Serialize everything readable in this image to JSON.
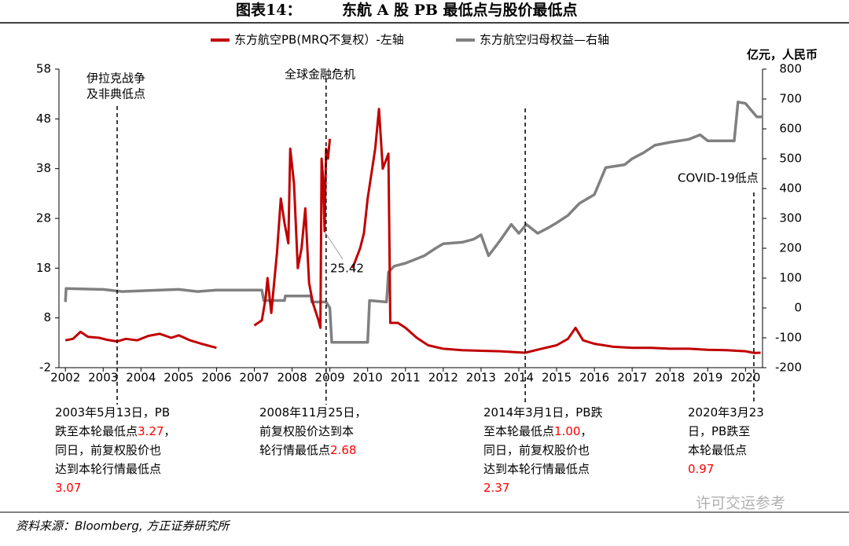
{
  "chart_data": {
    "type": "line",
    "title": "图表14：",
    "subtitle": "东航 A 股 PB 最低点与股价最低点",
    "y2_label": "亿元，人民币",
    "source": "资料来源：Bloomberg, 方正证券研究所",
    "watermark": "许可交运参考",
    "xlim": [
      2001.83,
      2020.45
    ],
    "xticks": [
      2002,
      2003,
      2004,
      2005,
      2006,
      2007,
      2008,
      2009,
      2010,
      2011,
      2012,
      2013,
      2014,
      2015,
      2016,
      2017,
      2018,
      2019,
      2020
    ],
    "ylim": [
      -2,
      58
    ],
    "yticks": [
      -2,
      8,
      18,
      28,
      38,
      48,
      58
    ],
    "y2lim": [
      -200,
      800
    ],
    "y2ticks": [
      -200,
      -100,
      0,
      100,
      200,
      300,
      400,
      500,
      600,
      700,
      800
    ],
    "series": [
      {
        "name": "东方航空PB(MRQ不复权）-左轴",
        "color": "#c00000",
        "x": [
          2002.0,
          2002.2,
          2002.4,
          2002.6,
          2002.9,
          2003.1,
          2003.37,
          2003.6,
          2003.9,
          2004.2,
          2004.5,
          2004.8,
          2005.0,
          2005.3,
          2005.6,
          2005.9,
          2006.0,
          2006.5,
          2007.0,
          2007.2,
          2007.3,
          2007.35,
          2007.45,
          2007.6,
          2007.7,
          2007.8,
          2007.9,
          2007.95,
          2008.05,
          2008.15,
          2008.25,
          2008.35,
          2008.45,
          2008.55,
          2008.7,
          2008.75,
          2008.78,
          2008.82,
          2008.86,
          2008.9,
          2008.95,
          2009.0,
          2009.3,
          2009.6,
          2009.8,
          2009.9,
          2010.0,
          2010.2,
          2010.3,
          2010.4,
          2010.5,
          2010.55,
          2010.6,
          2010.8,
          2011.0,
          2011.3,
          2011.6,
          2012.0,
          2012.5,
          2013.0,
          2013.5,
          2014.17,
          2014.6,
          2015.0,
          2015.3,
          2015.5,
          2015.7,
          2016.0,
          2016.5,
          2017.0,
          2017.5,
          2018.0,
          2018.5,
          2019.0,
          2019.5,
          2020.0,
          2020.22,
          2020.4
        ],
        "values": [
          3.5,
          3.8,
          5.2,
          4.2,
          4.0,
          3.6,
          3.27,
          3.8,
          3.5,
          4.4,
          4.8,
          4.0,
          4.5,
          3.5,
          2.8,
          2.2,
          2.0,
          null,
          6.5,
          7.5,
          12,
          16,
          9,
          21,
          32,
          27,
          23,
          42,
          35,
          18,
          22,
          30,
          15,
          11,
          7.5,
          6,
          40,
          36,
          25.42,
          42,
          40,
          44,
          null,
          18,
          22,
          25,
          32,
          42,
          50,
          38,
          40,
          41,
          7,
          7,
          6,
          4,
          2.5,
          1.8,
          1.5,
          1.4,
          1.3,
          1.0,
          1.8,
          2.5,
          3.8,
          6,
          3.5,
          2.8,
          2.2,
          2.0,
          2.0,
          1.8,
          1.8,
          1.6,
          1.5,
          1.3,
          0.97,
          1.0
        ]
      },
      {
        "name": "东方航空归母权益—右轴",
        "color": "#808080",
        "axis": "y2",
        "x": [
          2002.0,
          2002.02,
          2003.0,
          2003.5,
          2004.5,
          2005.0,
          2005.5,
          2006.0,
          2007.2,
          2007.25,
          2007.8,
          2007.82,
          2008.5,
          2008.52,
          2008.9,
          2009.0,
          2009.05,
          2010.0,
          2010.05,
          2010.5,
          2010.52,
          2010.55,
          2010.7,
          2011.0,
          2011.2,
          2011.5,
          2011.8,
          2012.0,
          2012.5,
          2012.8,
          2013.0,
          2013.2,
          2013.5,
          2013.8,
          2014.0,
          2014.2,
          2014.5,
          2014.8,
          2015.0,
          2015.3,
          2015.6,
          2016.0,
          2016.3,
          2016.8,
          2017.0,
          2017.3,
          2017.6,
          2018.0,
          2018.5,
          2018.8,
          2019.0,
          2019.7,
          2019.8,
          2020.0,
          2020.3,
          2020.45
        ],
        "values": [
          20,
          65,
          62,
          55,
          60,
          62,
          55,
          60,
          60,
          25,
          25,
          40,
          40,
          20,
          20,
          0,
          -115,
          -115,
          25,
          20,
          55,
          120,
          140,
          150,
          160,
          175,
          200,
          215,
          220,
          230,
          245,
          175,
          225,
          280,
          250,
          280,
          250,
          270,
          285,
          310,
          350,
          380,
          470,
          480,
          500,
          520,
          545,
          555,
          565,
          580,
          560,
          560,
          690,
          685,
          640,
          640
        ]
      }
    ],
    "events": [
      {
        "x": 2003.37,
        "label": [
          "伊拉克战争",
          "及非典低点"
        ]
      },
      {
        "x": 2008.9,
        "label": [
          "全球金融危机"
        ]
      },
      {
        "x": 2014.17,
        "label": []
      },
      {
        "x": 2020.22,
        "label": [
          "COVID-19低点"
        ]
      }
    ],
    "callout": "25.42",
    "notes": [
      [
        [
          {
            "text": "2003年5月13日，PB"
          }
        ],
        [
          {
            "text": "跌至本轮最低点"
          },
          {
            "text": "3.27",
            "color": "#ff0000"
          },
          {
            "text": "，"
          }
        ],
        [
          {
            "text": "同日，前复权股价也"
          }
        ],
        [
          {
            "text": "达到本轮行情最低点"
          }
        ],
        [
          {
            "text": "3.07",
            "color": "#ff0000"
          }
        ]
      ],
      [
        [
          {
            "text": "2008年11月25日，"
          }
        ],
        [
          {
            "text": "前复权股价达到本"
          }
        ],
        [
          {
            "text": "轮行情最低点"
          },
          {
            "text": "2.68",
            "color": "#ff0000"
          }
        ]
      ],
      [
        [
          {
            "text": "2014年3月1日，PB跌"
          }
        ],
        [
          {
            "text": "至本轮最低点"
          },
          {
            "text": "1.00",
            "color": "#ff0000"
          },
          {
            "text": "，"
          }
        ],
        [
          {
            "text": "同日，前复权股价也"
          }
        ],
        [
          {
            "text": "达到本轮行情最低点"
          }
        ],
        [
          {
            "text": "2.37",
            "color": "#ff0000"
          }
        ]
      ],
      [
        [
          {
            "text": "2020年3月23"
          }
        ],
        [
          {
            "text": "日，PB跌至"
          }
        ],
        [
          {
            "text": "本轮最低点"
          }
        ],
        [
          {
            "text": "0.97",
            "color": "#ff0000"
          }
        ]
      ]
    ]
  }
}
